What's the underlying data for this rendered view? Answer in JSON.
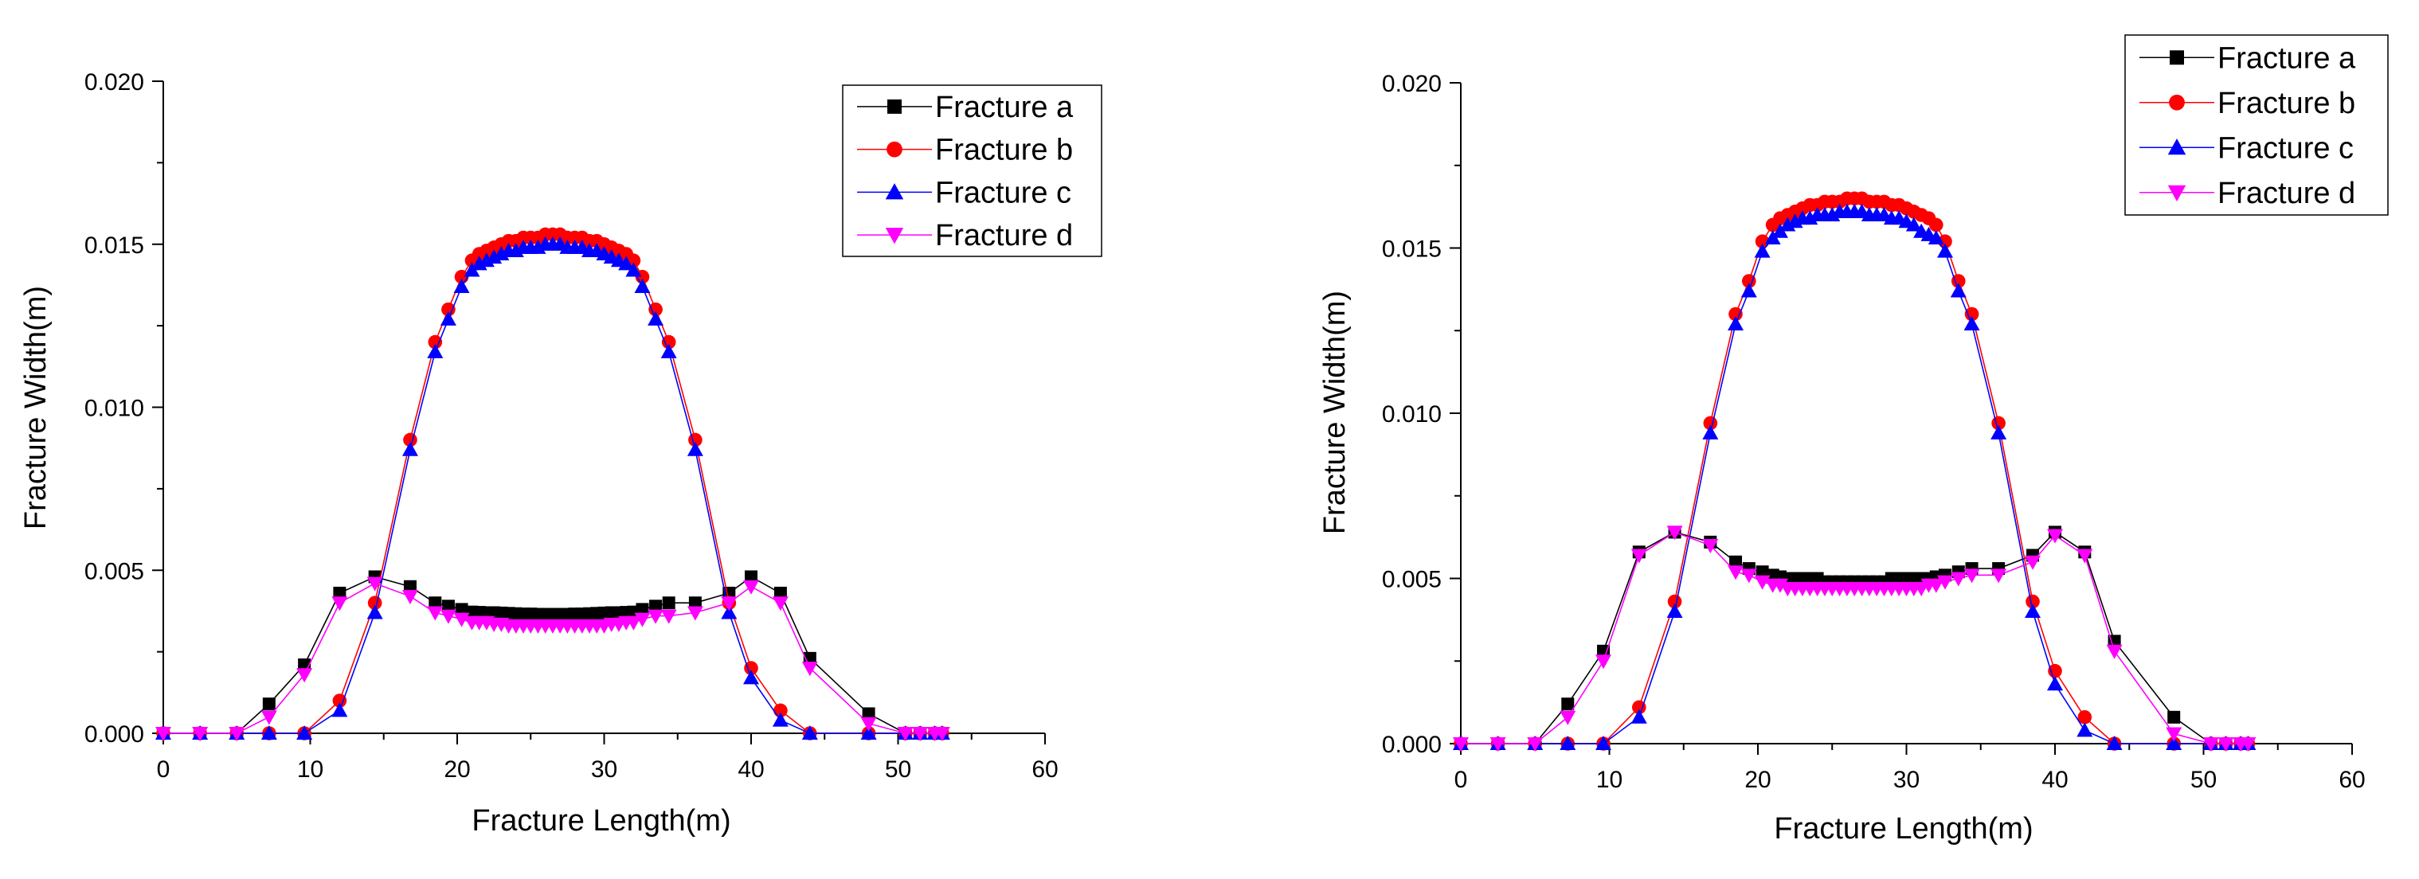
{
  "chart_data": [
    {
      "type": "line",
      "title": "",
      "xlabel": "Fracture Length(m)",
      "ylabel": "Fracture Width(m)",
      "xlim": [
        0,
        60
      ],
      "ylim": [
        0,
        0.02
      ],
      "xticks": [
        0,
        10,
        20,
        30,
        40,
        50,
        60
      ],
      "yticks": [
        0.0,
        0.005,
        0.01,
        0.015,
        0.02
      ],
      "ytick_labels": [
        "0.000",
        "0.005",
        "0.010",
        "0.015",
        "0.020"
      ],
      "grid": false,
      "legend_position": "top-right",
      "series": [
        {
          "name": "Fracture a",
          "color": "#000000",
          "marker": "square",
          "x": [
            0,
            2.5,
            5,
            7.2,
            9.6,
            12,
            14.4,
            16.8,
            18.5,
            19.4,
            20.3,
            21,
            21.5,
            22,
            22.5,
            23,
            23.5,
            24,
            24.5,
            25,
            25.5,
            26,
            26.5,
            27,
            27.5,
            28,
            28.5,
            29,
            29.5,
            30,
            30.5,
            31,
            31.5,
            32,
            32.6,
            33.5,
            34.4,
            36.2,
            38.5,
            40,
            42,
            44,
            48,
            50.5,
            51.5,
            52.5,
            53
          ],
          "y": [
            0,
            0,
            0,
            0.0009,
            0.0021,
            0.0043,
            0.0048,
            0.0045,
            0.004,
            0.0039,
            0.0038,
            0.00372,
            0.00371,
            0.0037,
            0.0037,
            0.00369,
            0.00368,
            0.00367,
            0.00366,
            0.00366,
            0.00365,
            0.00365,
            0.00365,
            0.00365,
            0.00365,
            0.00366,
            0.00366,
            0.00367,
            0.00368,
            0.00369,
            0.0037,
            0.0037,
            0.00371,
            0.00372,
            0.0038,
            0.0039,
            0.004,
            0.004,
            0.0043,
            0.0048,
            0.0043,
            0.0023,
            0.0006,
            0,
            0,
            0,
            0
          ]
        },
        {
          "name": "Fracture b",
          "color": "#ff0000",
          "marker": "circle",
          "x": [
            0,
            2.5,
            5,
            7.2,
            9.6,
            12,
            14.4,
            16.8,
            18.5,
            19.4,
            20.3,
            21,
            21.5,
            22,
            22.5,
            23,
            23.5,
            24,
            24.5,
            25,
            25.5,
            26,
            26.5,
            27,
            27.5,
            28,
            28.5,
            29,
            29.5,
            30,
            30.5,
            31,
            31.5,
            32,
            32.6,
            33.5,
            34.4,
            36.2,
            38.5,
            40,
            42,
            44,
            48,
            50.5,
            51.5,
            52.5,
            53
          ],
          "y": [
            0,
            0,
            0,
            0,
            0,
            0.001,
            0.004,
            0.009,
            0.012,
            0.013,
            0.014,
            0.0145,
            0.0147,
            0.0148,
            0.0149,
            0.015,
            0.0151,
            0.0151,
            0.0152,
            0.0152,
            0.0152,
            0.0153,
            0.0153,
            0.0153,
            0.0152,
            0.0152,
            0.0152,
            0.0151,
            0.0151,
            0.015,
            0.0149,
            0.0148,
            0.0147,
            0.0145,
            0.014,
            0.013,
            0.012,
            0.009,
            0.004,
            0.002,
            0.0007,
            0,
            0,
            0,
            0,
            0,
            0
          ]
        },
        {
          "name": "Fracture c",
          "color": "#0000ff",
          "marker": "triangle-up",
          "x": [
            0,
            2.5,
            5,
            7.2,
            9.6,
            12,
            14.4,
            16.8,
            18.5,
            19.4,
            20.3,
            21,
            21.5,
            22,
            22.5,
            23,
            23.5,
            24,
            24.5,
            25,
            25.5,
            26,
            26.5,
            27,
            27.5,
            28,
            28.5,
            29,
            29.5,
            30,
            30.5,
            31,
            31.5,
            32,
            32.6,
            33.5,
            34.4,
            36.2,
            38.5,
            40,
            42,
            44,
            48,
            50.5,
            51.5,
            52.5,
            53
          ],
          "y": [
            0,
            0,
            0,
            0,
            0,
            0.0007,
            0.0037,
            0.0087,
            0.0117,
            0.0127,
            0.0137,
            0.0142,
            0.0144,
            0.0145,
            0.0146,
            0.0147,
            0.0148,
            0.0148,
            0.0149,
            0.0149,
            0.0149,
            0.015,
            0.015,
            0.015,
            0.0149,
            0.0149,
            0.0149,
            0.0148,
            0.0148,
            0.0147,
            0.0146,
            0.0145,
            0.0144,
            0.0142,
            0.0137,
            0.0127,
            0.0117,
            0.0087,
            0.0037,
            0.0017,
            0.0004,
            0,
            0,
            0,
            0,
            0,
            0
          ]
        },
        {
          "name": "Fracture d",
          "color": "#ff00ff",
          "marker": "triangle-down",
          "x": [
            0,
            2.5,
            5,
            7.2,
            9.6,
            12,
            14.4,
            16.8,
            18.5,
            19.4,
            20.3,
            21,
            21.5,
            22,
            22.5,
            23,
            23.5,
            24,
            24.5,
            25,
            25.5,
            26,
            26.5,
            27,
            27.5,
            28,
            28.5,
            29,
            29.5,
            30,
            30.5,
            31,
            31.5,
            32,
            32.6,
            33.5,
            34.4,
            36.2,
            38.5,
            40,
            42,
            44,
            48,
            50.5,
            51.5,
            52.5,
            53
          ],
          "y": [
            0,
            0,
            0,
            0.0005,
            0.0018,
            0.004,
            0.0046,
            0.0042,
            0.0037,
            0.0036,
            0.0035,
            0.0034,
            0.0034,
            0.0034,
            0.00335,
            0.00335,
            0.0033,
            0.0033,
            0.0033,
            0.0033,
            0.0033,
            0.0033,
            0.0033,
            0.0033,
            0.0033,
            0.0033,
            0.0033,
            0.0033,
            0.0033,
            0.0033,
            0.00335,
            0.00335,
            0.0034,
            0.0034,
            0.0035,
            0.0036,
            0.0036,
            0.0037,
            0.004,
            0.0045,
            0.004,
            0.002,
            0.0003,
            0,
            0,
            0,
            0
          ]
        }
      ]
    },
    {
      "type": "line",
      "title": "",
      "xlabel": "Fracture Length(m)",
      "ylabel": "Fracture Width(m)",
      "xlim": [
        0,
        60
      ],
      "ylim": [
        0,
        0.02
      ],
      "xticks": [
        0,
        10,
        20,
        30,
        40,
        50,
        60
      ],
      "yticks": [
        0.0,
        0.005,
        0.01,
        0.015,
        0.02
      ],
      "ytick_labels": [
        "0.000",
        "0.005",
        "0.010",
        "0.015",
        "0.020"
      ],
      "grid": false,
      "legend_position": "top-right",
      "series": [
        {
          "name": "Fracture a",
          "color": "#000000",
          "marker": "square",
          "x": [
            0,
            2.5,
            5,
            7.2,
            9.6,
            12,
            14.4,
            16.8,
            18.5,
            19.4,
            20.3,
            21,
            21.5,
            22,
            22.5,
            23,
            23.5,
            24,
            24.5,
            25,
            25.5,
            26,
            26.5,
            27,
            27.5,
            28,
            28.5,
            29,
            29.5,
            30,
            30.5,
            31,
            31.5,
            32,
            32.6,
            33.5,
            34.4,
            36.2,
            38.5,
            40,
            42,
            44,
            48,
            50.5,
            51.5,
            52.5,
            53
          ],
          "y": [
            0,
            0,
            0,
            0.0012,
            0.0028,
            0.0058,
            0.0064,
            0.0061,
            0.0055,
            0.0053,
            0.0052,
            0.0051,
            0.00505,
            0.005,
            0.005,
            0.005,
            0.005,
            0.005,
            0.0049,
            0.0049,
            0.0049,
            0.0049,
            0.0049,
            0.0049,
            0.0049,
            0.0049,
            0.0049,
            0.005,
            0.005,
            0.005,
            0.005,
            0.005,
            0.005,
            0.00505,
            0.0051,
            0.0052,
            0.0053,
            0.0053,
            0.0057,
            0.0064,
            0.0058,
            0.0031,
            0.0008,
            0,
            0,
            0,
            0
          ]
        },
        {
          "name": "Fracture b",
          "color": "#ff0000",
          "marker": "circle",
          "x": [
            0,
            2.5,
            5,
            7.2,
            9.6,
            12,
            14.4,
            16.8,
            18.5,
            19.4,
            20.3,
            21,
            21.5,
            22,
            22.5,
            23,
            23.5,
            24,
            24.5,
            25,
            25.5,
            26,
            26.5,
            27,
            27.5,
            28,
            28.5,
            29,
            29.5,
            30,
            30.5,
            31,
            31.5,
            32,
            32.6,
            33.5,
            34.4,
            36.2,
            38.5,
            40,
            42,
            44,
            48,
            50.5,
            51.5,
            52.5,
            53
          ],
          "y": [
            0,
            0,
            0,
            0,
            0,
            0.0011,
            0.0043,
            0.0097,
            0.013,
            0.014,
            0.0152,
            0.0157,
            0.0159,
            0.016,
            0.0161,
            0.0162,
            0.0163,
            0.0163,
            0.0164,
            0.0164,
            0.0164,
            0.0165,
            0.0165,
            0.0165,
            0.0164,
            0.0164,
            0.0164,
            0.0163,
            0.0163,
            0.0162,
            0.0161,
            0.016,
            0.0159,
            0.0157,
            0.0152,
            0.014,
            0.013,
            0.0097,
            0.0043,
            0.0022,
            0.0008,
            0,
            0,
            0,
            0,
            0,
            0
          ]
        },
        {
          "name": "Fracture c",
          "color": "#0000ff",
          "marker": "triangle-up",
          "x": [
            0,
            2.5,
            5,
            7.2,
            9.6,
            12,
            14.4,
            16.8,
            18.5,
            19.4,
            20.3,
            21,
            21.5,
            22,
            22.5,
            23,
            23.5,
            24,
            24.5,
            25,
            25.5,
            26,
            26.5,
            27,
            27.5,
            28,
            28.5,
            29,
            29.5,
            30,
            30.5,
            31,
            31.5,
            32,
            32.6,
            33.5,
            34.4,
            36.2,
            38.5,
            40,
            42,
            44,
            48,
            50.5,
            51.5,
            52.5,
            53
          ],
          "y": [
            0,
            0,
            0,
            0,
            0,
            0.0008,
            0.004,
            0.0094,
            0.0127,
            0.0137,
            0.0149,
            0.0153,
            0.0155,
            0.0157,
            0.0158,
            0.0159,
            0.0159,
            0.016,
            0.016,
            0.016,
            0.0161,
            0.0161,
            0.0161,
            0.0161,
            0.016,
            0.016,
            0.016,
            0.0159,
            0.0159,
            0.0158,
            0.0157,
            0.0155,
            0.0154,
            0.0153,
            0.0149,
            0.0137,
            0.0127,
            0.0094,
            0.004,
            0.0018,
            0.0004,
            0,
            0,
            0,
            0,
            0,
            0
          ]
        },
        {
          "name": "Fracture d",
          "color": "#ff00ff",
          "marker": "triangle-down",
          "x": [
            0,
            2.5,
            5,
            7.2,
            9.6,
            12,
            14.4,
            16.8,
            18.5,
            19.4,
            20.3,
            21,
            21.5,
            22,
            22.5,
            23,
            23.5,
            24,
            24.5,
            25,
            25.5,
            26,
            26.5,
            27,
            27.5,
            28,
            28.5,
            29,
            29.5,
            30,
            30.5,
            31,
            31.5,
            32,
            32.6,
            33.5,
            34.4,
            36.2,
            38.5,
            40,
            42,
            44,
            48,
            50.5,
            51.5,
            52.5,
            53
          ],
          "y": [
            0,
            0,
            0,
            0.0008,
            0.0025,
            0.0057,
            0.0064,
            0.006,
            0.0052,
            0.0051,
            0.0049,
            0.0048,
            0.0048,
            0.0047,
            0.0047,
            0.0047,
            0.0047,
            0.0047,
            0.0047,
            0.0047,
            0.0047,
            0.0047,
            0.0047,
            0.0047,
            0.0047,
            0.0047,
            0.0047,
            0.0047,
            0.0047,
            0.0047,
            0.0047,
            0.0047,
            0.0048,
            0.0048,
            0.0049,
            0.005,
            0.0051,
            0.0051,
            0.0055,
            0.0063,
            0.0057,
            0.0028,
            0.0003,
            0,
            0,
            0,
            0
          ]
        }
      ]
    }
  ]
}
